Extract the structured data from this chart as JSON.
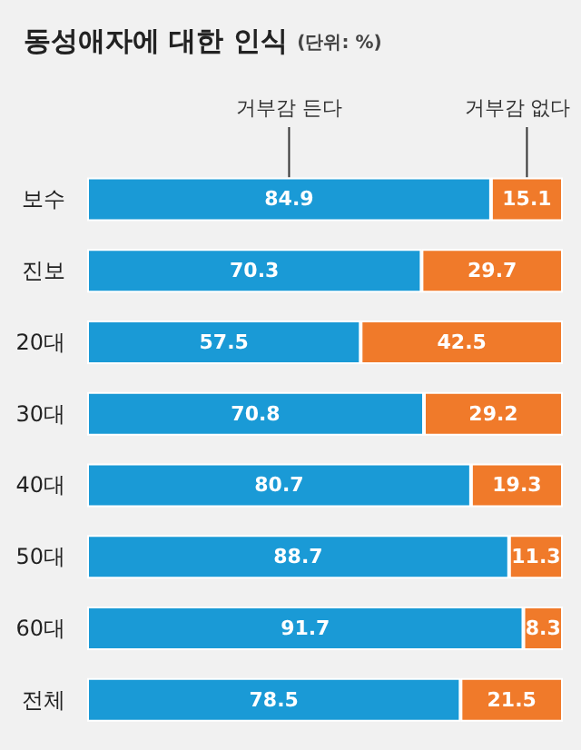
{
  "chart_data": {
    "type": "bar",
    "title": "동성애자에 대한 인식",
    "subtitle": "(단위: %)",
    "orientation": "horizontal",
    "stacked": true,
    "data_labels": true,
    "tick_labels": "y",
    "grid": false,
    "xlim": [
      0,
      100
    ],
    "categories": [
      "보수",
      "진보",
      "20대",
      "30대",
      "40대",
      "50대",
      "60대",
      "전체"
    ],
    "series": [
      {
        "name": "거부감 든다",
        "color": "#1a9ad6",
        "values": [
          84.9,
          70.3,
          57.5,
          70.8,
          80.7,
          88.7,
          91.7,
          78.5
        ]
      },
      {
        "name": "거부감 없다",
        "color": "#f07a2a",
        "values": [
          15.1,
          29.7,
          42.5,
          29.2,
          19.3,
          11.3,
          8.3,
          21.5
        ]
      }
    ]
  }
}
